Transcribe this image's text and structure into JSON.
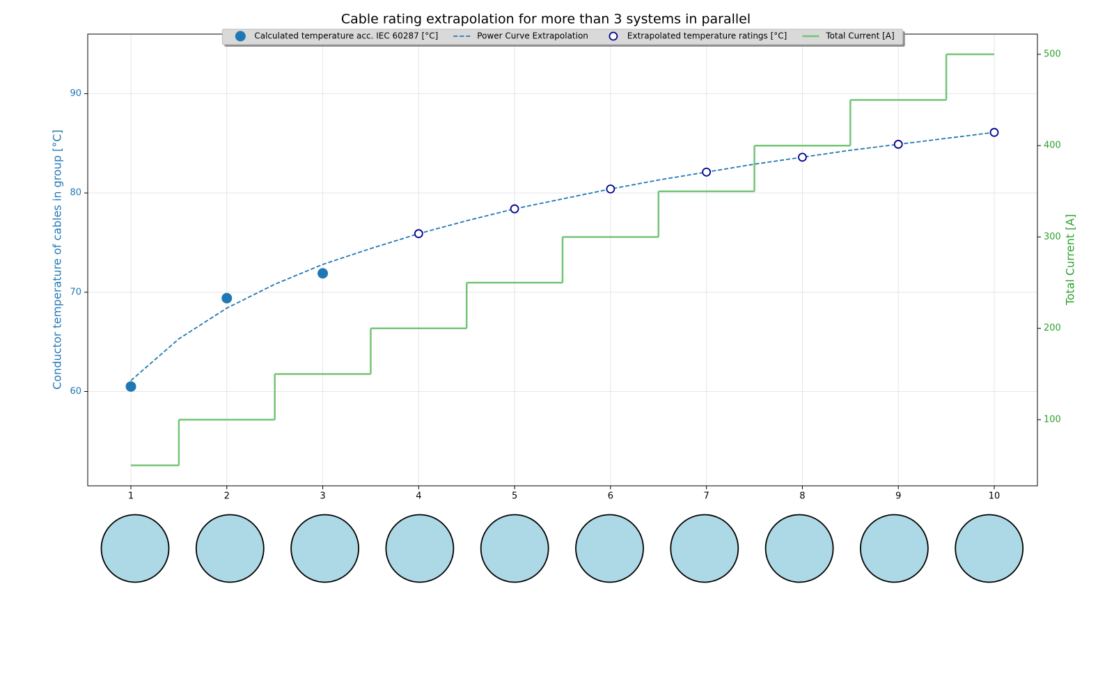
{
  "chart_data": {
    "type": "line",
    "title": "Cable rating extrapolation for more than 3 systems in parallel",
    "ylabel": "Conductor temperature of cables in group [°C]",
    "y2label": "Total Current [A]",
    "xlim": [
      0.55,
      10.45
    ],
    "xticks": [
      1,
      2,
      3,
      4,
      5,
      6,
      7,
      8,
      9,
      10
    ],
    "ylim": [
      50.5,
      96.0
    ],
    "yticks": [
      60,
      70,
      80,
      90
    ],
    "y2lim": [
      27.6,
      522.1
    ],
    "y2ticks": [
      100,
      200,
      300,
      400,
      500
    ],
    "grid": true,
    "legend": "upper center",
    "series": [
      {
        "name": "Calculated temperature acc. IEC 60287 [°C]",
        "kind": "scatter",
        "marker": "filled",
        "color": "#1f77b4",
        "x": [
          1,
          2,
          3
        ],
        "values": [
          60.5,
          69.4,
          71.9
        ]
      },
      {
        "name": "Power Curve Extrapolation",
        "kind": "line",
        "linestyle": "dashed",
        "color": "#1f77b4",
        "x": [
          1,
          1.5,
          2,
          2.5,
          3,
          3.5,
          4,
          4.5,
          5,
          5.5,
          6,
          6.5,
          7,
          7.5,
          8,
          8.5,
          9,
          9.5,
          10
        ],
        "values": [
          61.1,
          65.3,
          68.4,
          70.8,
          72.8,
          74.4,
          75.9,
          77.2,
          78.4,
          79.4,
          80.4,
          81.3,
          82.1,
          82.9,
          83.6,
          84.3,
          84.9,
          85.5,
          86.1
        ]
      },
      {
        "name": "Extrapolated temperature ratings [°C]",
        "kind": "scatter",
        "marker": "open",
        "color": "#00008b",
        "x": [
          4,
          5,
          6,
          7,
          8,
          9,
          10
        ],
        "values": [
          75.9,
          78.4,
          80.4,
          82.1,
          83.6,
          84.9,
          86.1
        ]
      },
      {
        "name": "Total Current [A]",
        "kind": "step",
        "axis": "y2",
        "color": "#74c476",
        "x": [
          1,
          2,
          3,
          4,
          5,
          6,
          7,
          8,
          9,
          10
        ],
        "values": [
          50,
          100,
          150,
          200,
          250,
          300,
          350,
          400,
          450,
          500
        ]
      }
    ]
  }
}
